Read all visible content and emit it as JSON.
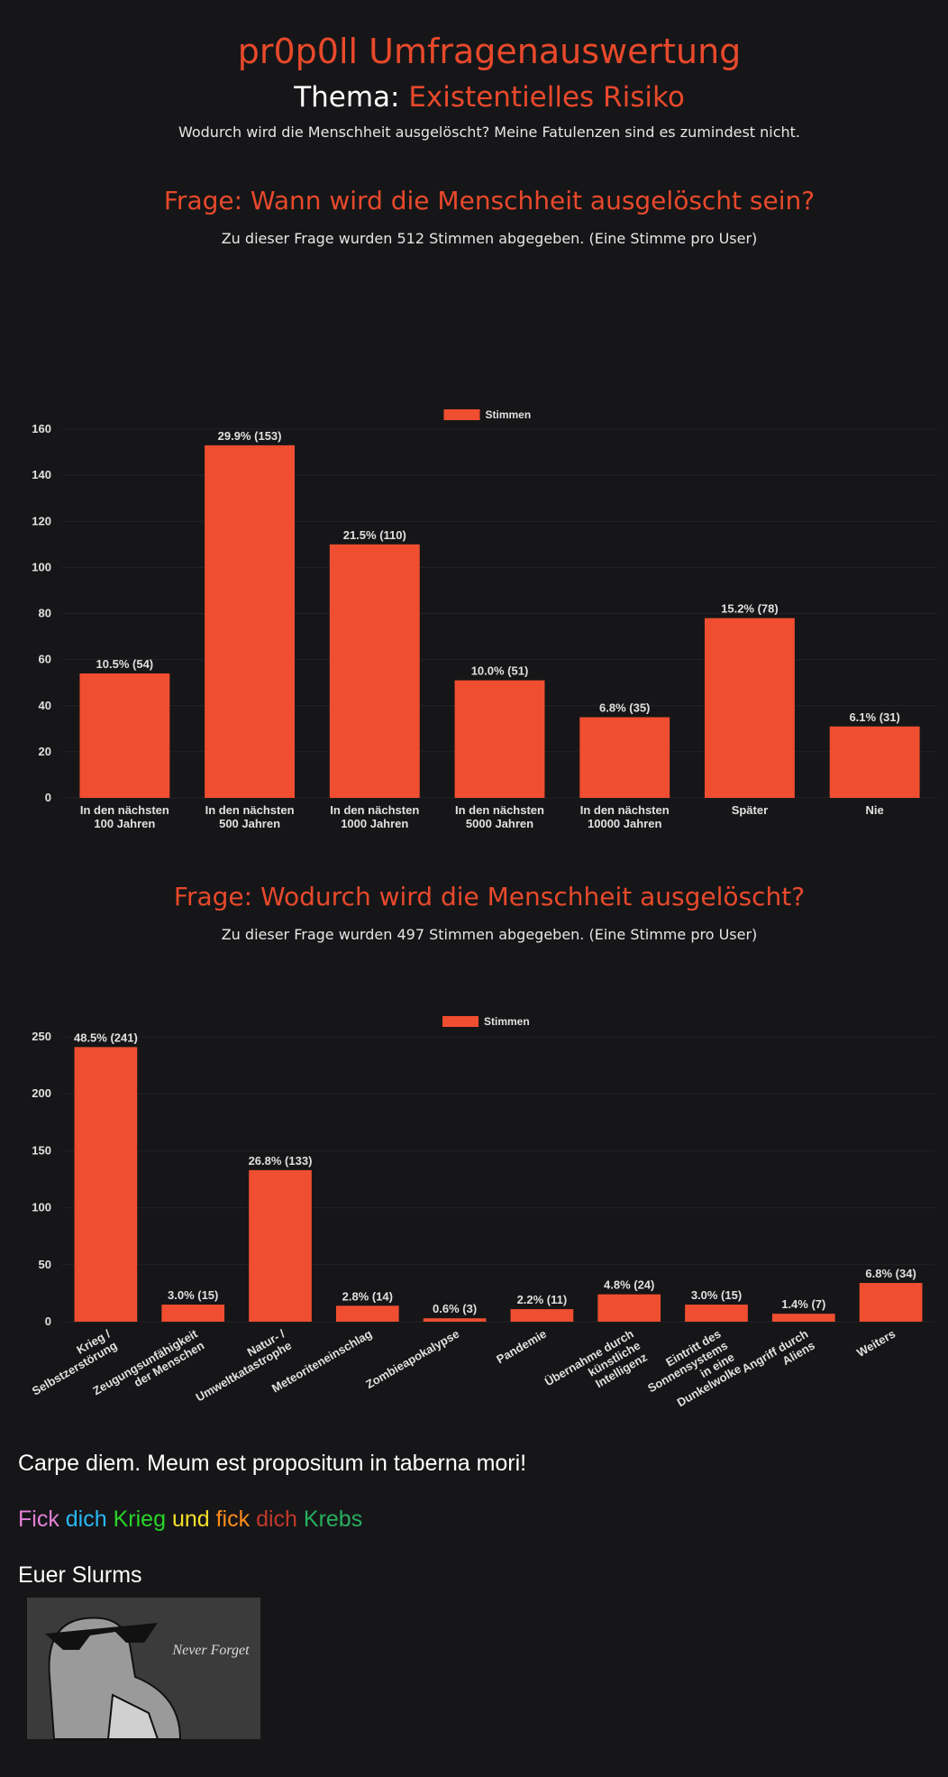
{
  "header": {
    "title": "pr0p0ll Umfragenauswertung",
    "theme_label": "Thema:",
    "theme": "Existentielles Risiko",
    "description": "Wodurch wird die Menschheit ausgelöscht? Meine Fatulenzen sind es zumindest nicht."
  },
  "chart_data": [
    {
      "type": "bar",
      "title": "Frage: Wann wird die Menschheit ausgelöscht sein?",
      "subtitle": "Zu dieser Frage wurden 512 Stimmen abgegeben. (Eine Stimme pro User)",
      "categories": [
        "In den nächsten\n100 Jahren",
        "In den nächsten\n500 Jahren",
        "In den nächsten\n1000 Jahren",
        "In den nächsten\n5000 Jahren",
        "In den nächsten\n10000 Jahren",
        "Später",
        "Nie"
      ],
      "series": [
        {
          "name": "Stimmen",
          "color": "#f04e30",
          "values": [
            54,
            153,
            110,
            51,
            35,
            78,
            31
          ],
          "value_labels": [
            "10.5% (54)",
            "29.9% (153)",
            "21.5% (110)",
            "10.0% (51)",
            "6.8% (35)",
            "15.2% (78)",
            "6.1% (31)"
          ]
        }
      ],
      "ylim": [
        0,
        160
      ],
      "yticks": [
        0,
        20,
        40,
        60,
        80,
        100,
        120,
        140,
        160
      ],
      "grid": true,
      "legend": "top"
    },
    {
      "type": "bar",
      "title": "Frage: Wodurch wird die Menschheit ausgelöscht?",
      "subtitle": "Zu dieser Frage wurden 497 Stimmen abgegeben. (Eine Stimme pro User)",
      "categories": [
        "Krieg /\nSelbstzerstörung",
        "Zeugungsunfähigkeit\nder Menschen",
        "Natur- /\nUmweltkatastrophe",
        "Meteoriteneinschlag",
        "Zombieapokalypse",
        "Pandemie",
        "Übernahme durch\nkünstliche\nIntelligenz",
        "Eintritt des\nSonnensystems\nin eine\nDunkelwolke",
        "Angriff durch\nAliens",
        "Weiters"
      ],
      "series": [
        {
          "name": "Stimmen",
          "color": "#f04e30",
          "values": [
            241,
            15,
            133,
            14,
            3,
            11,
            24,
            15,
            7,
            34
          ],
          "value_labels": [
            "48.5% (241)",
            "3.0% (15)",
            "26.8% (133)",
            "2.8% (14)",
            "0.6% (3)",
            "2.2% (11)",
            "4.8% (24)",
            "3.0% (15)",
            "1.4% (7)",
            "6.8% (34)"
          ]
        }
      ],
      "ylim": [
        0,
        250
      ],
      "yticks": [
        0,
        50,
        100,
        150,
        200,
        250
      ],
      "grid": true,
      "legend": "top"
    }
  ],
  "footer": {
    "quote": "Carpe diem. Meum est propositum in taberna mori!",
    "motto_words": [
      {
        "text": "Fick",
        "color": "#e57fd9"
      },
      {
        "text": "dich",
        "color": "#29b6f6"
      },
      {
        "text": "Krieg",
        "color": "#2ad42a"
      },
      {
        "text": "und",
        "color": "#f5e02a"
      },
      {
        "text": "fick",
        "color": "#ff8c1a"
      },
      {
        "text": "dich",
        "color": "#c0392b"
      },
      {
        "text": "Krebs",
        "color": "#27ae60"
      }
    ],
    "signature": "Euer Slurms"
  },
  "image": {
    "caption": "Never Forget"
  }
}
